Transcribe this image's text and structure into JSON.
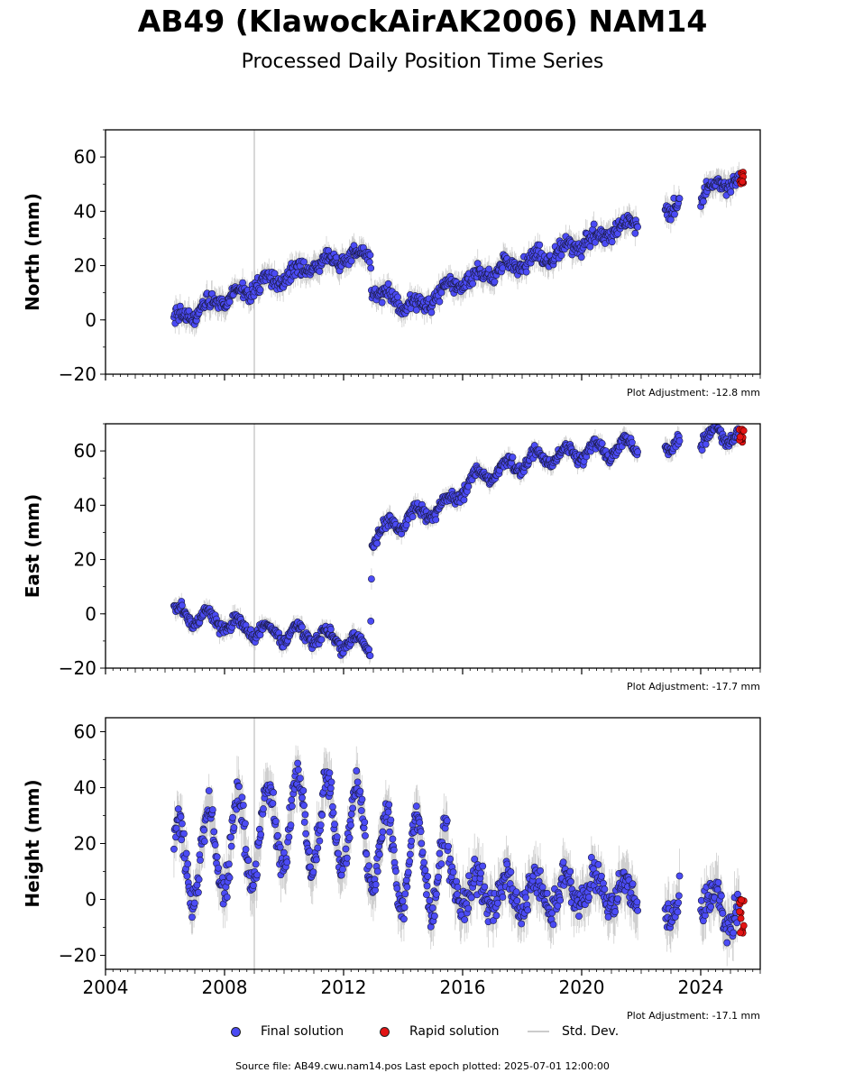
{
  "title": "AB49 (KlawockAirAK2006) NAM14",
  "subtitle": "Processed Daily Position Time Series",
  "legend": {
    "final": "Final solution",
    "rapid": "Rapid solution",
    "stddev": "Std. Dev."
  },
  "source": "Source file: AB49.cwu.nam14.pos  Last epoch plotted: 2025-07-01 12:00:00",
  "colors": {
    "final": "#4b4bf5",
    "rapid": "#e31414",
    "stddev": "#bbbbbb",
    "vline": "#cccccc"
  },
  "chart_data": [
    {
      "type": "scatter",
      "ylabel": "North (mm)",
      "adjustment": "Plot Adjustment: -12.8 mm",
      "xlim": [
        2004,
        2026
      ],
      "ylim": [
        -20,
        70
      ],
      "yticks": [
        -20,
        0,
        20,
        40,
        60
      ],
      "yticklabels": [
        "−20",
        "0",
        "20",
        "40",
        "60"
      ],
      "vline": 2009.0,
      "trend": [
        [
          2006.3,
          0
        ],
        [
          2007.5,
          5
        ],
        [
          2009.0,
          12
        ],
        [
          2010.5,
          18
        ],
        [
          2011.5,
          22
        ],
        [
          2012.9,
          24
        ],
        [
          2012.95,
          11
        ],
        [
          2014.5,
          4
        ],
        [
          2015.5,
          12
        ],
        [
          2017.0,
          18
        ],
        [
          2019.0,
          24
        ],
        [
          2020.5,
          30
        ],
        [
          2021.9,
          37
        ],
        [
          2022.8,
          41
        ],
        [
          2023.5,
          45
        ],
        [
          2024.0,
          47
        ],
        [
          2025.3,
          52
        ]
      ],
      "gaps": [
        [
          2021.9,
          2022.8
        ],
        [
          2023.3,
          2024.0
        ]
      ],
      "noise": 3,
      "annual": 2,
      "rapid": [
        2025.3,
        2025.45,
        50,
        55
      ]
    },
    {
      "type": "scatter",
      "ylabel": "East (mm)",
      "adjustment": "Plot Adjustment: -17.7 mm",
      "xlim": [
        2004,
        2026
      ],
      "ylim": [
        -20,
        70
      ],
      "yticks": [
        -20,
        0,
        20,
        40,
        60
      ],
      "yticklabels": [
        "−20",
        "0",
        "20",
        "40",
        "60"
      ],
      "vline": 2009.0,
      "trend": [
        [
          2006.3,
          0
        ],
        [
          2008.0,
          -3
        ],
        [
          2009.5,
          -7
        ],
        [
          2011.0,
          -8
        ],
        [
          2012.9,
          -12
        ],
        [
          2012.95,
          28
        ],
        [
          2014.0,
          35
        ],
        [
          2015.5,
          40
        ],
        [
          2016.0,
          47
        ],
        [
          2017.0,
          52
        ],
        [
          2018.0,
          56
        ],
        [
          2019.5,
          59
        ],
        [
          2021.9,
          62
        ],
        [
          2022.8,
          63
        ],
        [
          2024.0,
          65
        ],
        [
          2025.3,
          66
        ]
      ],
      "gaps": [
        [
          2021.9,
          2022.8
        ],
        [
          2023.3,
          2024.0
        ]
      ],
      "noise": 2.2,
      "annual": 3,
      "rapid": [
        2025.3,
        2025.45,
        63,
        68
      ]
    },
    {
      "type": "scatter",
      "ylabel": "Height (mm)",
      "adjustment": "Plot Adjustment: -17.1 mm",
      "xlim": [
        2004,
        2026
      ],
      "ylim": [
        -25,
        65
      ],
      "yticks": [
        -20,
        0,
        20,
        40,
        60
      ],
      "yticklabels": [
        "−20",
        "0",
        "20",
        "40",
        "60"
      ],
      "xticks": [
        2004,
        2008,
        2012,
        2016,
        2020,
        2024
      ],
      "vline": 2009.0,
      "trend": [
        [
          2006.3,
          12
        ],
        [
          2008.0,
          18
        ],
        [
          2010.0,
          28
        ],
        [
          2012.0,
          27
        ],
        [
          2013.5,
          15
        ],
        [
          2015.5,
          10
        ],
        [
          2016.0,
          3
        ],
        [
          2018.0,
          2
        ],
        [
          2020.0,
          2
        ],
        [
          2021.9,
          3
        ],
        [
          2022.8,
          0
        ],
        [
          2025.3,
          -3
        ]
      ],
      "gaps": [
        [
          2021.9,
          2022.8
        ],
        [
          2023.3,
          2024.0
        ]
      ],
      "noise": 6,
      "annual": 16,
      "annualFade": [
        2015.5,
        6
      ],
      "rapid": [
        2025.3,
        2025.45,
        -12,
        0
      ]
    }
  ]
}
